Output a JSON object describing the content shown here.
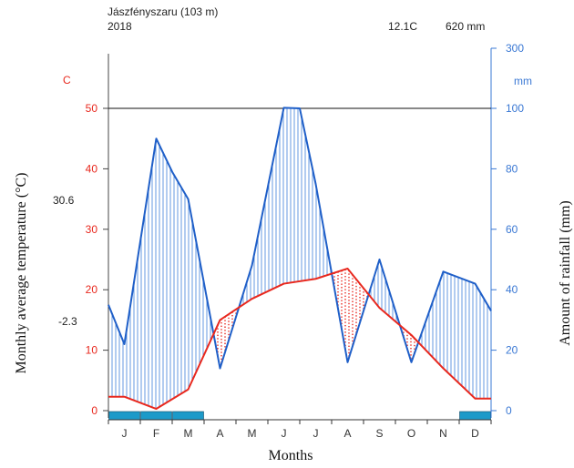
{
  "chart_data": {
    "type": "climate-diagram",
    "station": "Jászfényszaru (103 m)",
    "year": "2018",
    "mean_temperature_label": "12.1C",
    "annual_rainfall_label": "620 mm",
    "months": [
      "J",
      "F",
      "M",
      "A",
      "M",
      "J",
      "J",
      "A",
      "S",
      "O",
      "N",
      "D"
    ],
    "temperature_c": [
      2.3,
      0.3,
      3.5,
      15.0,
      18.5,
      21.0,
      21.8,
      23.5,
      17.0,
      12.5,
      7.0,
      2.0
    ],
    "rainfall_mm": [
      35,
      22,
      90,
      79,
      70,
      14,
      48,
      102,
      100,
      75,
      16,
      50,
      16,
      46,
      42,
      33
    ],
    "rainfall_x": [
      0,
      0.5,
      1.5,
      2,
      2.5,
      3.5,
      4.5,
      5.5,
      6,
      6.5,
      7.5,
      8.5,
      9.5,
      10.5,
      11.5,
      12
    ],
    "temp_axis": {
      "label": "C",
      "ticks": [
        0,
        10,
        20,
        30,
        40,
        50
      ],
      "range": [
        0,
        60
      ]
    },
    "rain_axis": {
      "unit": "mm",
      "ticks": [
        0,
        20,
        40,
        60,
        80,
        100,
        300
      ],
      "range": [
        0,
        300
      ]
    },
    "ylabel_left": "Monthly average temperature (°C)",
    "ylabel_right": "Amount of rainfall (mm)",
    "xlabel": "Months",
    "abs_max_label": "30.6",
    "abs_min_label": "-2.3",
    "frost_months": [
      true,
      true,
      true,
      false,
      false,
      false,
      false,
      false,
      false,
      false,
      false,
      true
    ],
    "colors": {
      "temperature": "#e8281e",
      "rainfall": "#1f5fc8",
      "rainfall_fill": "#3f7fd9",
      "frost": "#1c9ac9",
      "temp_axis": "#e8281e",
      "rain_axis": "#3a78d4",
      "text": "#222222"
    }
  }
}
